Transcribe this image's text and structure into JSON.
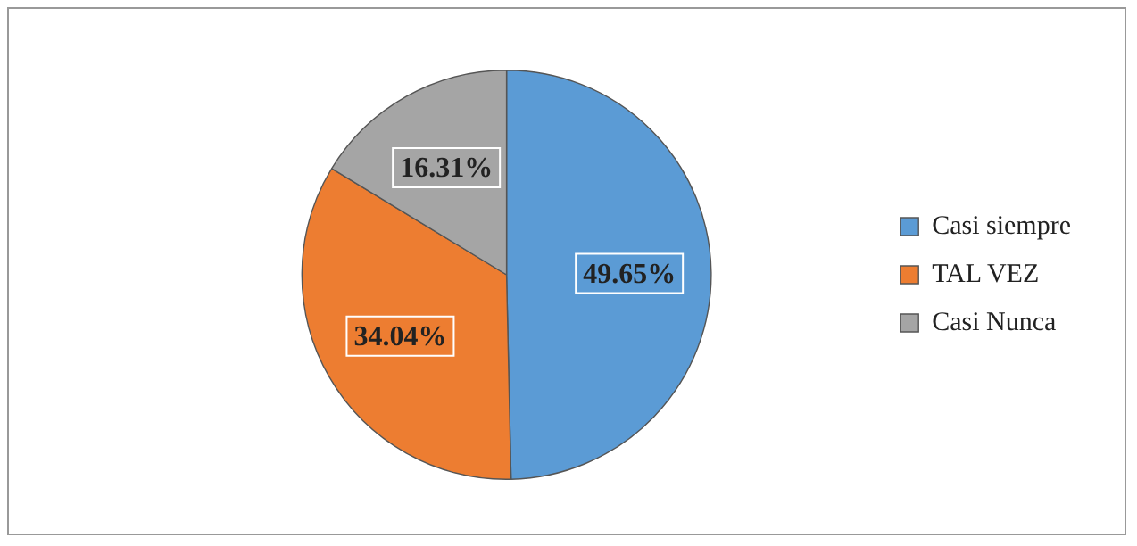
{
  "chart_data": {
    "type": "pie",
    "categories": [
      "Casi siempre",
      "TAL VEZ",
      "Casi Nunca"
    ],
    "values": [
      49.65,
      34.04,
      16.31
    ],
    "colors": [
      "#5b9bd5",
      "#ed7d31",
      "#a5a5a5"
    ],
    "value_labels": [
      "49.65%",
      "34.04%",
      "16.31%"
    ],
    "legend": "right"
  }
}
